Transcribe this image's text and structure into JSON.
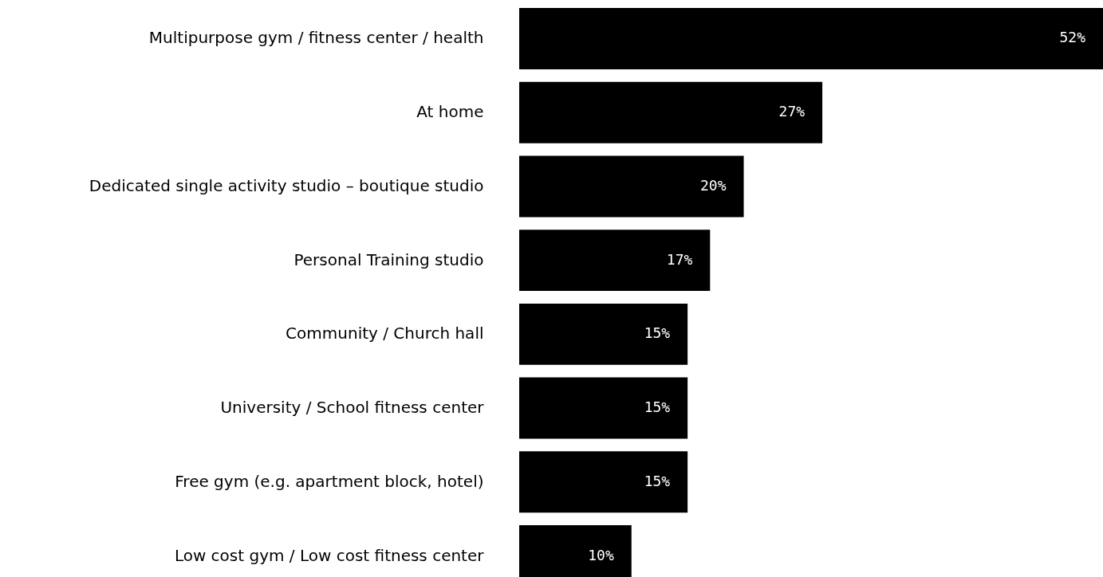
{
  "chart_data": {
    "type": "bar",
    "orientation": "horizontal",
    "categories": [
      "Multipurpose gym / fitness center / health",
      "At home",
      "Dedicated single activity studio – boutique studio",
      "Personal Training studio",
      "Community / Church hall",
      "University / School fitness center",
      "Free gym (e.g. apartment block, hotel)",
      "Low cost gym / Low cost fitness center"
    ],
    "values": [
      52,
      27,
      20,
      17,
      15,
      15,
      15,
      10
    ],
    "value_labels": [
      "52%",
      "27%",
      "20%",
      "17%",
      "15%",
      "15%",
      "15%",
      "10%"
    ],
    "color": "#000000",
    "tick_labels": "y"
  }
}
